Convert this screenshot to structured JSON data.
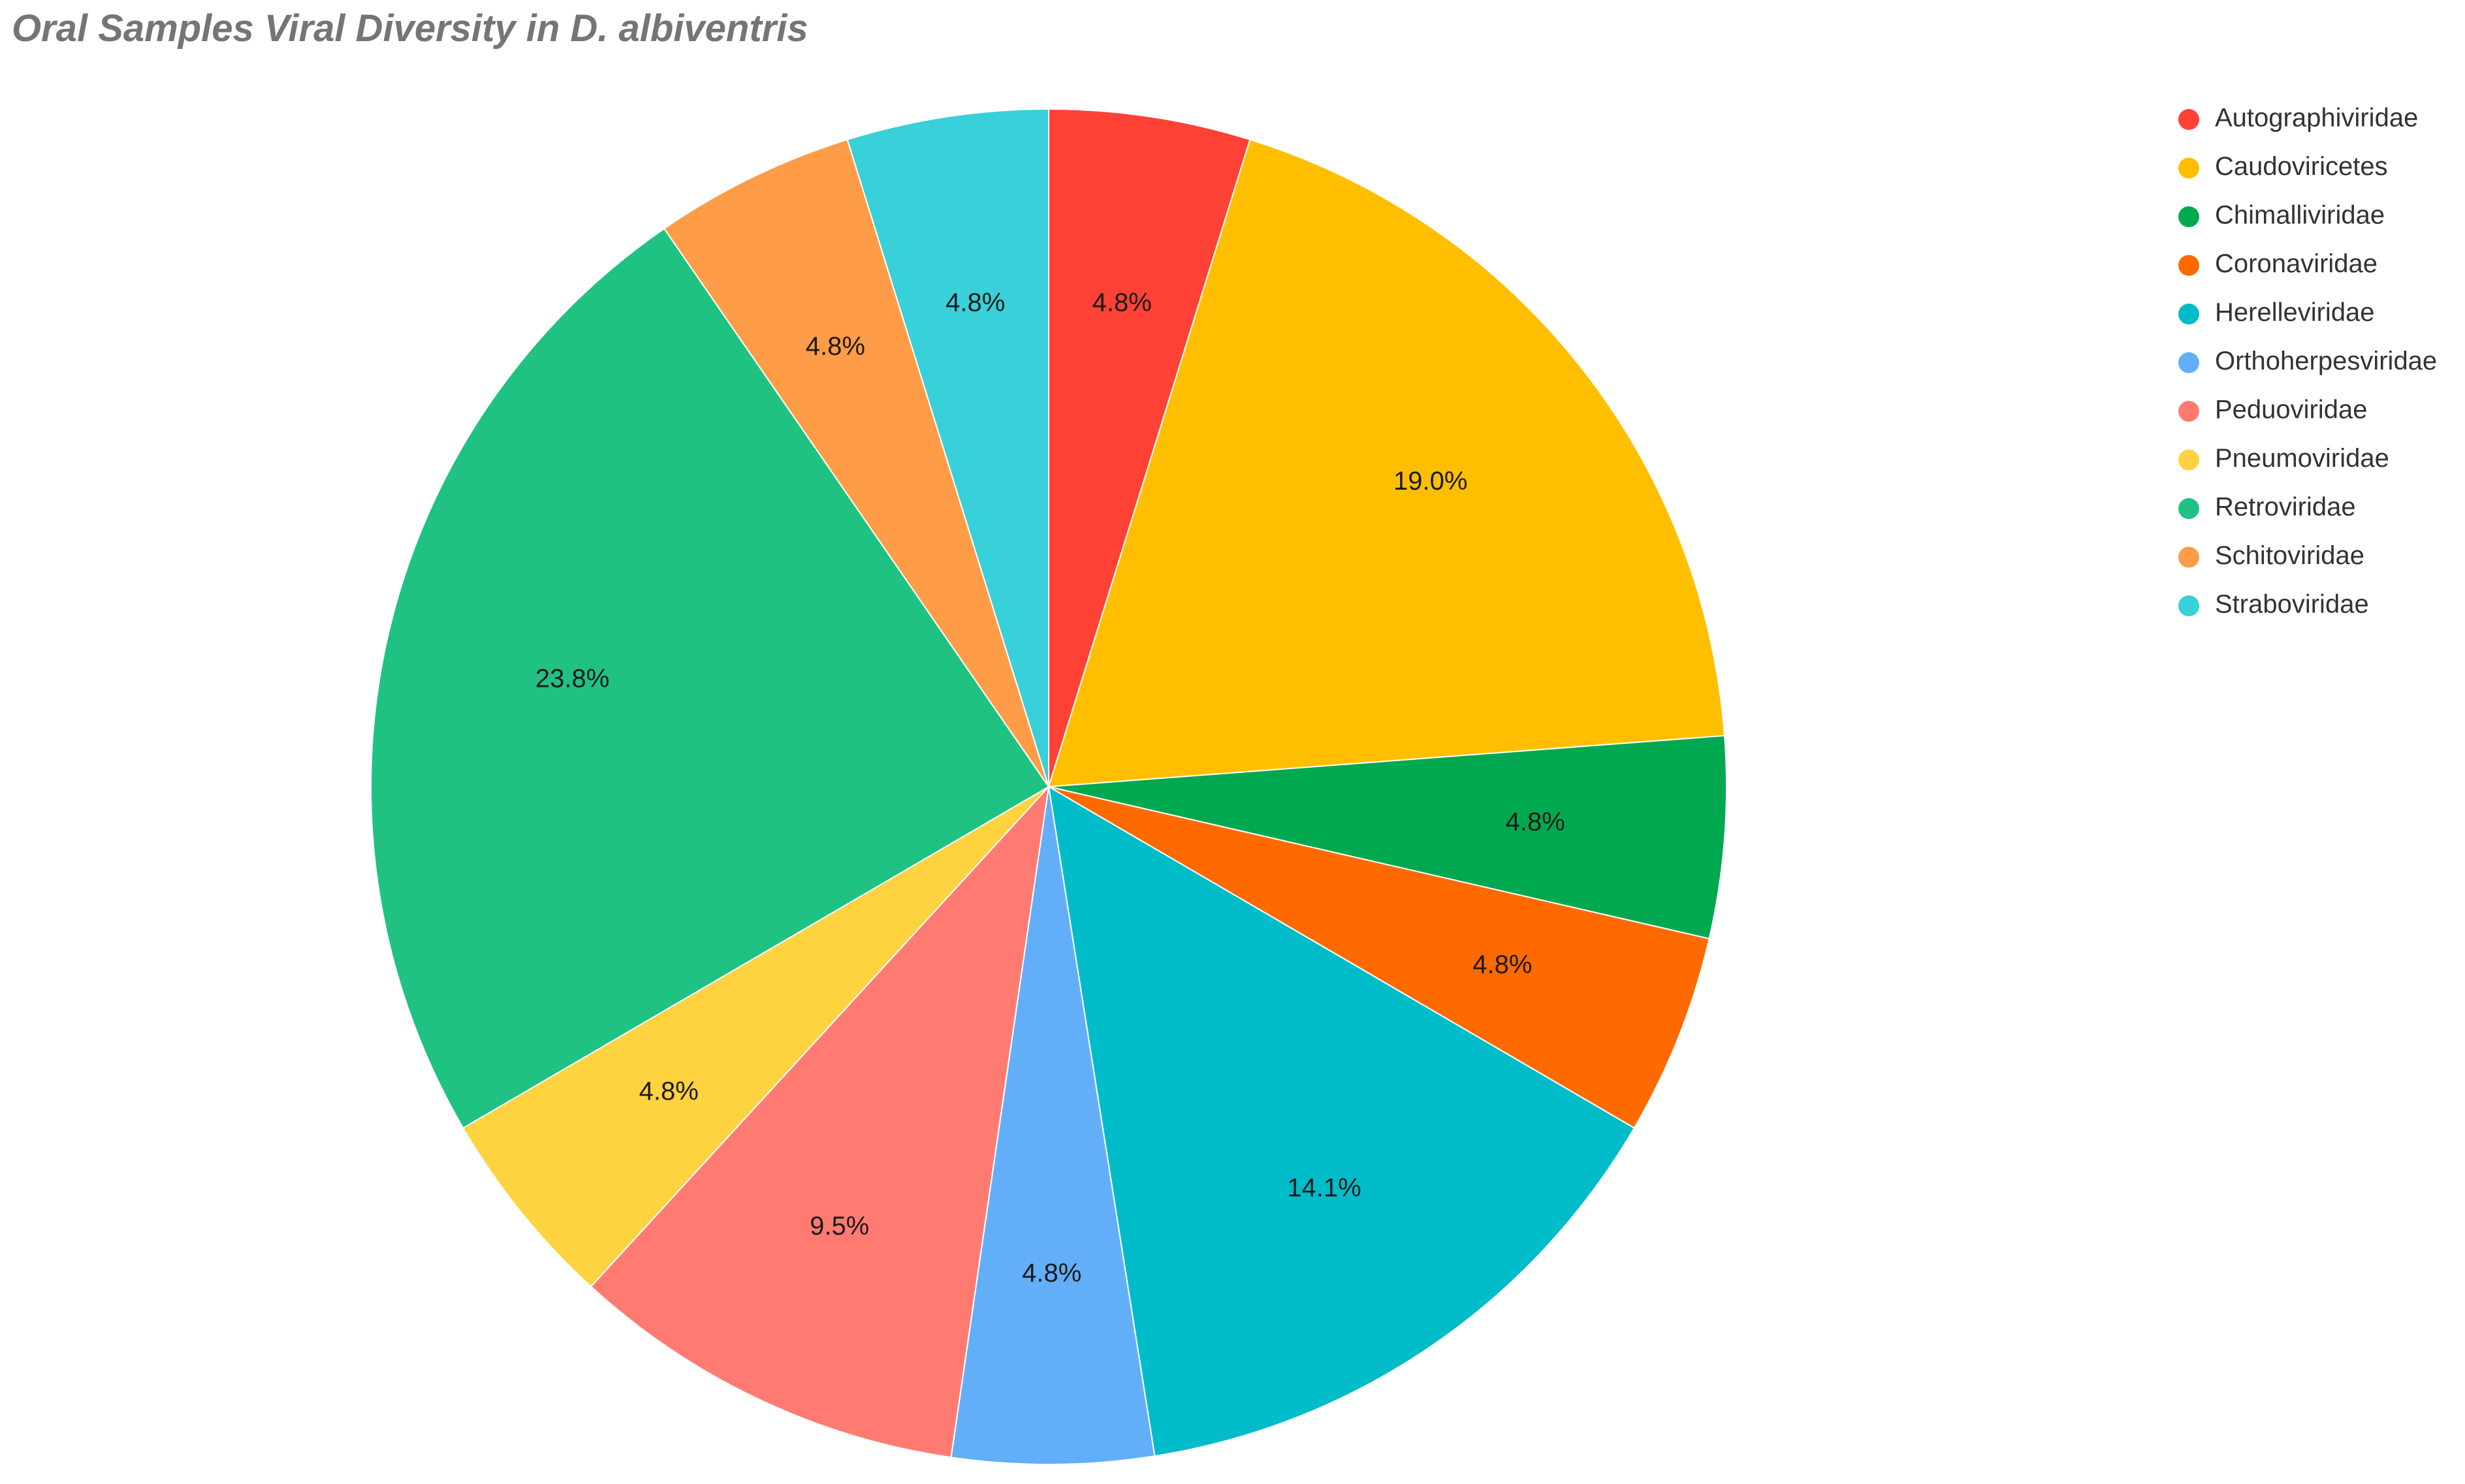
{
  "chart_data": {
    "type": "pie",
    "title": "Oral Samples Viral Diversity in D. albiventris",
    "legend_position": "right",
    "slices": [
      {
        "label": "Autographiviridae",
        "value": 4.8,
        "display": "4.8%",
        "color": "#FF4136"
      },
      {
        "label": "Caudoviricetes",
        "value": 19.0,
        "display": "19.0%",
        "color": "#FFBF00"
      },
      {
        "label": "Chimalliviridae",
        "value": 4.8,
        "display": "4.8%",
        "color": "#00A94F"
      },
      {
        "label": "Coronaviridae",
        "value": 4.8,
        "display": "4.8%",
        "color": "#FF6A00"
      },
      {
        "label": "Herelleviridae",
        "value": 14.1,
        "display": "14.1%",
        "color": "#00BCC9"
      },
      {
        "label": "Orthoherpesviridae",
        "value": 4.8,
        "display": "4.8%",
        "color": "#63AEF8"
      },
      {
        "label": "Peduoviridae",
        "value": 9.5,
        "display": "9.5%",
        "color": "#FF7B72"
      },
      {
        "label": "Pneumoviridae",
        "value": 4.8,
        "display": "4.8%",
        "color": "#FFD23F"
      },
      {
        "label": "Retroviridae",
        "value": 23.8,
        "display": "23.8%",
        "color": "#20C284"
      },
      {
        "label": "Schitoviridae",
        "value": 4.8,
        "display": "4.8%",
        "color": "#FF9C47"
      },
      {
        "label": "Straboviridae",
        "value": 4.8,
        "display": "4.8%",
        "color": "#38D0D9"
      }
    ]
  }
}
